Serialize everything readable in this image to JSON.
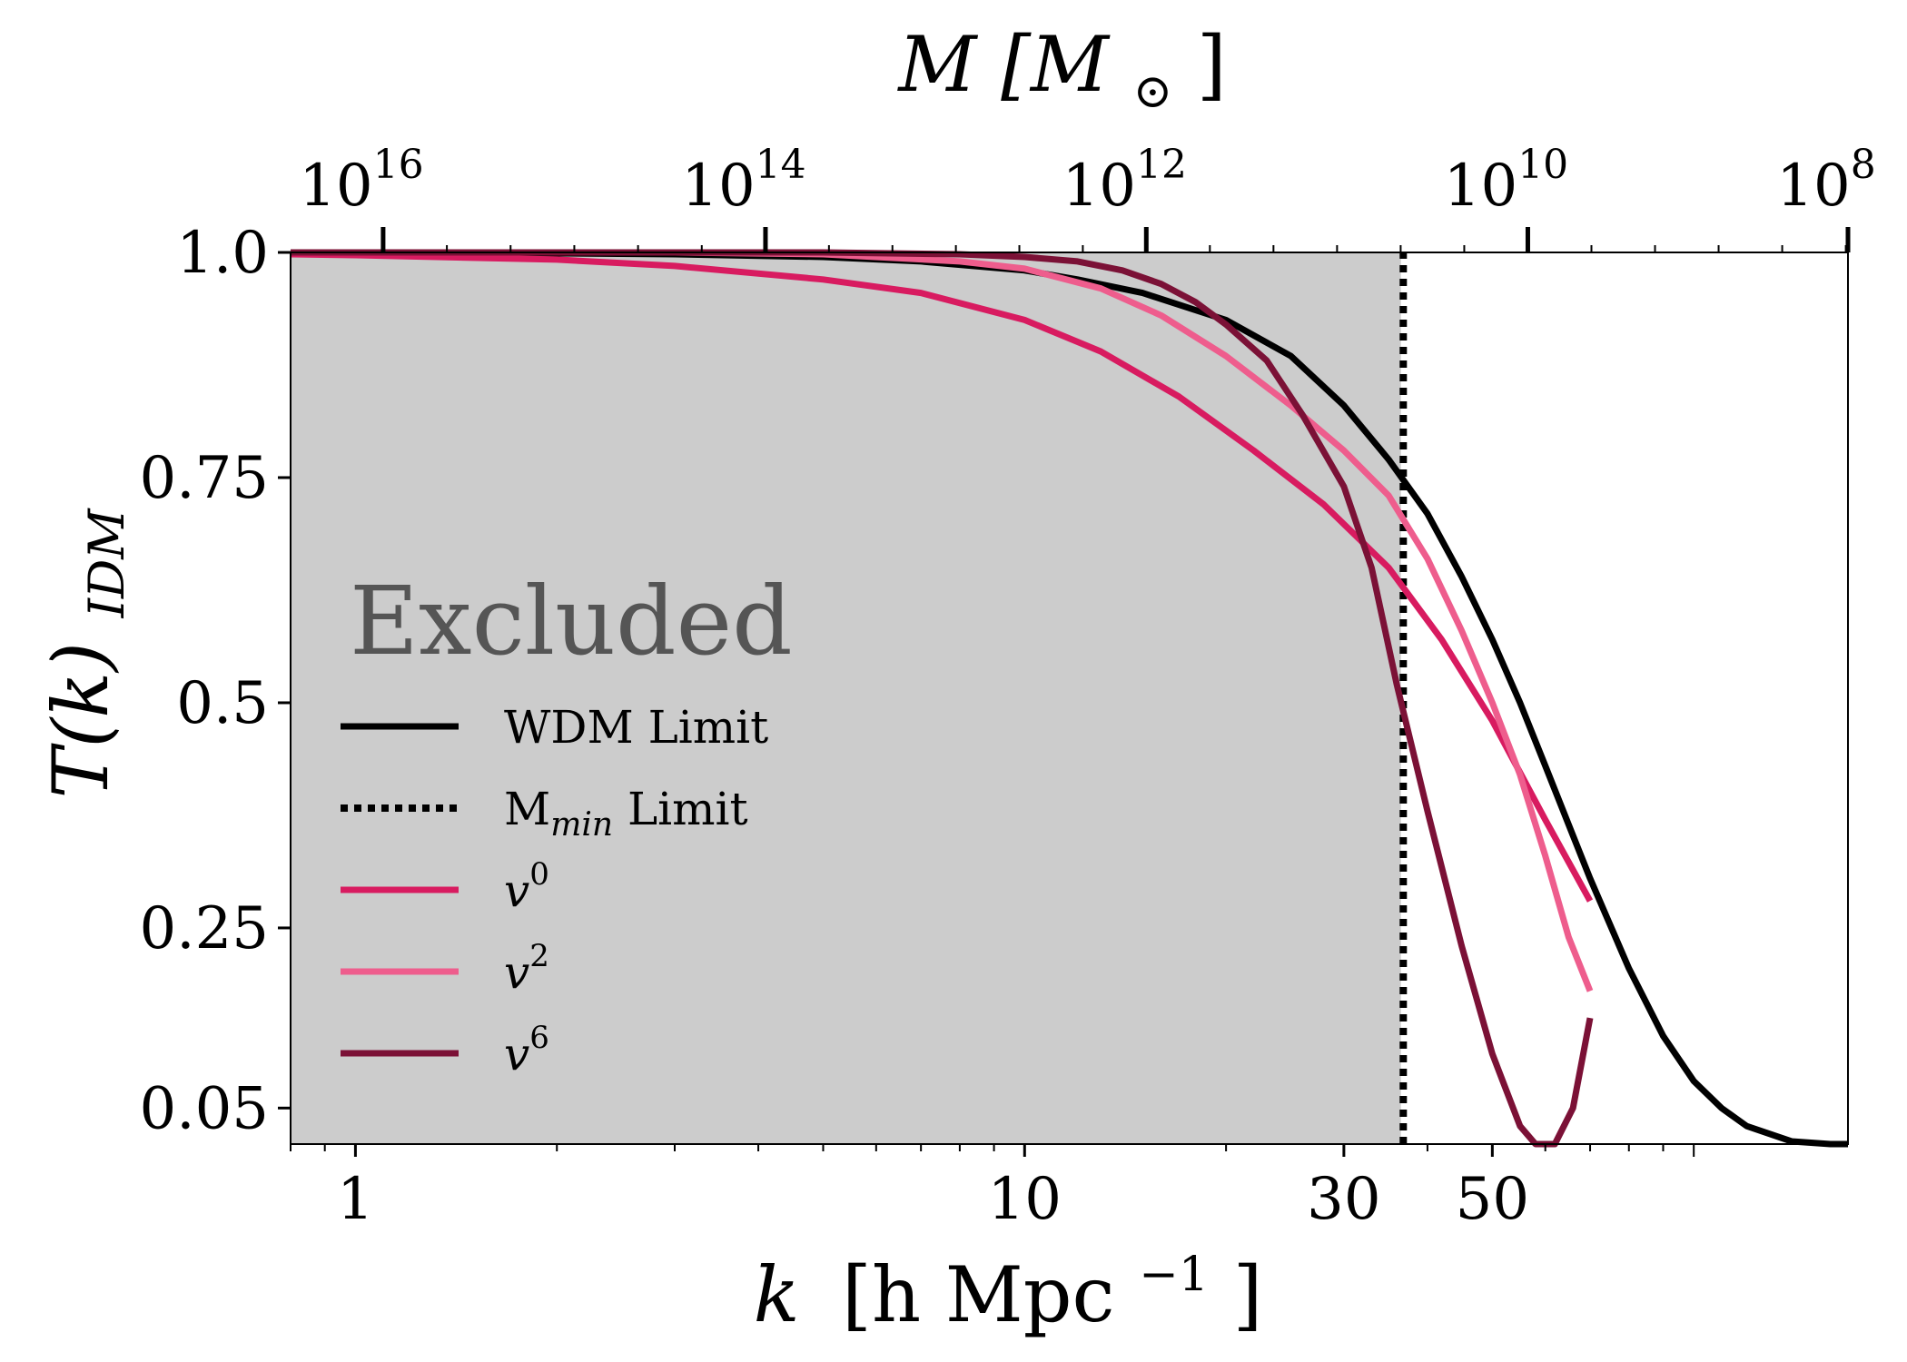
{
  "chart_data": {
    "type": "line",
    "x_scale": "log",
    "xlim": [
      0.8,
      170
    ],
    "ylim": [
      0.01,
      1.0
    ],
    "xlabel_var": "k",
    "xlabel_units": "[h Mpc",
    "xlabel_exp": "−1",
    "xlabel_close": "]",
    "ylabel_main": "T(k)",
    "ylabel_sub": "IDM",
    "top_xlabel": "M [M",
    "top_xlabel_sub": "⊙",
    "top_xlabel_close": "]",
    "x_ticks": [
      {
        "value": 1,
        "label": "1"
      },
      {
        "value": 10,
        "label": "10"
      },
      {
        "value": 30,
        "label": "30"
      },
      {
        "value": 50,
        "label": "50"
      }
    ],
    "y_ticks": [
      {
        "value": 1.0,
        "label": "1.0"
      },
      {
        "value": 0.75,
        "label": "0.75"
      },
      {
        "value": 0.5,
        "label": "0.5"
      },
      {
        "value": 0.25,
        "label": "0.25"
      },
      {
        "value": 0.05,
        "label": "0.05"
      }
    ],
    "top_ticks": [
      {
        "k": 1.1,
        "base": "10",
        "exp": "16"
      },
      {
        "k": 4.1,
        "base": "10",
        "exp": "14"
      },
      {
        "k": 15.2,
        "base": "10",
        "exp": "12"
      },
      {
        "k": 56.5,
        "base": "10",
        "exp": "10"
      },
      {
        "k": 210,
        "base": "10",
        "exp": "8"
      }
    ],
    "excluded_region": {
      "label": "Excluded",
      "k_max": 36.5
    },
    "mmin_limit_k": 36.8,
    "series": [
      {
        "name": "WDM Limit",
        "color": "#000000",
        "dash": "solid",
        "x": [
          0.8,
          1,
          2,
          3,
          5,
          7,
          10,
          12,
          15,
          20,
          25,
          30,
          35,
          40,
          45,
          50,
          55,
          60,
          65,
          70,
          80,
          90,
          100,
          110,
          120,
          140,
          160,
          170
        ],
        "y": [
          1.0,
          1.0,
          0.999,
          0.998,
          0.995,
          0.99,
          0.98,
          0.97,
          0.955,
          0.925,
          0.885,
          0.83,
          0.77,
          0.71,
          0.64,
          0.57,
          0.5,
          0.43,
          0.365,
          0.305,
          0.205,
          0.13,
          0.08,
          0.05,
          0.03,
          0.013,
          0.01,
          0.01
        ]
      },
      {
        "name": "M",
        "name_sub": "min",
        "name_suffix": " Limit",
        "color": "#000000",
        "dash": "dotted",
        "x": [
          36.8,
          36.8
        ],
        "y": [
          0.01,
          1.0
        ]
      },
      {
        "name": "v",
        "name_sup": "0",
        "color": "#d81b60",
        "dash": "solid",
        "x": [
          0.8,
          1,
          2,
          3,
          5,
          7,
          10,
          13,
          17,
          22,
          28,
          35,
          42,
          50,
          60,
          70
        ],
        "y": [
          0.998,
          0.997,
          0.992,
          0.985,
          0.97,
          0.955,
          0.925,
          0.89,
          0.84,
          0.78,
          0.72,
          0.65,
          0.57,
          0.48,
          0.37,
          0.28
        ]
      },
      {
        "name": "v",
        "name_sup": "2",
        "color": "#ee5d8d",
        "dash": "solid",
        "x": [
          0.8,
          1,
          3,
          5,
          8,
          10,
          13,
          16,
          20,
          25,
          30,
          35,
          40,
          45,
          50,
          55,
          60,
          65,
          70
        ],
        "y": [
          1.0,
          1.0,
          1.0,
          0.998,
          0.99,
          0.982,
          0.96,
          0.93,
          0.885,
          0.83,
          0.78,
          0.73,
          0.66,
          0.58,
          0.5,
          0.42,
          0.33,
          0.24,
          0.18
        ]
      },
      {
        "name": "v",
        "name_sup": "6",
        "color": "#7b1136",
        "dash": "solid",
        "x": [
          0.8,
          1,
          3,
          5,
          8,
          10,
          12,
          14,
          16,
          18,
          20,
          23,
          26,
          30,
          33,
          36,
          40,
          45,
          50,
          55,
          58,
          62,
          66,
          70
        ],
        "y": [
          1.0,
          1.0,
          1.0,
          1.0,
          0.998,
          0.995,
          0.99,
          0.98,
          0.965,
          0.945,
          0.92,
          0.88,
          0.82,
          0.74,
          0.65,
          0.52,
          0.38,
          0.23,
          0.11,
          0.03,
          0.01,
          0.01,
          0.05,
          0.15
        ]
      }
    ]
  }
}
